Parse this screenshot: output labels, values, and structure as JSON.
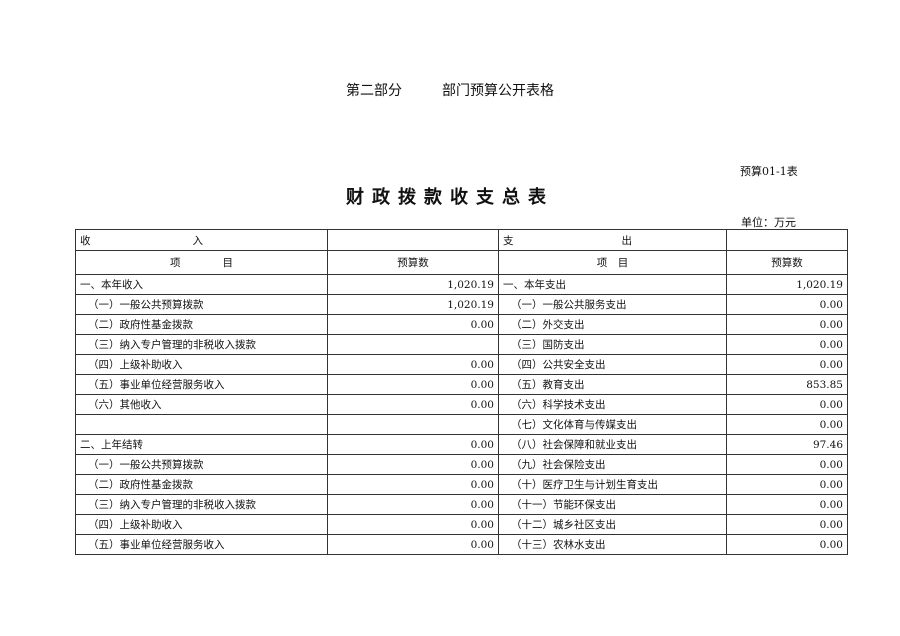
{
  "header": {
    "part": "第二部分",
    "part_title": "部门预算公开表格",
    "form_no": "预算01-1表",
    "title": "财政拨款收支总表",
    "unit": "单位：万元"
  },
  "table": {
    "income_header": [
      "收",
      "入"
    ],
    "expense_header": [
      "支",
      "出"
    ],
    "item_header": "项　　　　目",
    "item_header_right": "项　目",
    "amount_header": "预算数",
    "rows": [
      {
        "in_label": "一、本年收入",
        "in_indent": false,
        "in_value": "1,020.19",
        "out_label": "一、本年支出",
        "out_indent": false,
        "out_value": "1,020.19"
      },
      {
        "in_label": "（一）一般公共预算拨款",
        "in_indent": true,
        "in_value": "1,020.19",
        "out_label": "（一）一般公共服务支出",
        "out_indent": true,
        "out_value": "0.00"
      },
      {
        "in_label": "（二）政府性基金拨款",
        "in_indent": true,
        "in_value": "0.00",
        "out_label": "（二）外交支出",
        "out_indent": true,
        "out_value": "0.00"
      },
      {
        "in_label": "（三）纳入专户管理的非税收入拨款",
        "in_indent": true,
        "in_value": "",
        "out_label": "（三）国防支出",
        "out_indent": true,
        "out_value": "0.00"
      },
      {
        "in_label": "（四）上级补助收入",
        "in_indent": true,
        "in_value": "0.00",
        "out_label": "（四）公共安全支出",
        "out_indent": true,
        "out_value": "0.00"
      },
      {
        "in_label": "（五）事业单位经营服务收入",
        "in_indent": true,
        "in_value": "0.00",
        "out_label": "（五）教育支出",
        "out_indent": true,
        "out_value": "853.85"
      },
      {
        "in_label": "（六）其他收入",
        "in_indent": true,
        "in_value": "0.00",
        "out_label": "（六）科学技术支出",
        "out_indent": true,
        "out_value": "0.00"
      },
      {
        "in_label": "",
        "in_indent": false,
        "in_value": "",
        "out_label": "（七）文化体育与传媒支出",
        "out_indent": true,
        "out_value": "0.00"
      },
      {
        "in_label": "二、上年结转",
        "in_indent": false,
        "in_value": "0.00",
        "out_label": "（八）社会保障和就业支出",
        "out_indent": true,
        "out_value": "97.46"
      },
      {
        "in_label": "（一）一般公共预算拨款",
        "in_indent": true,
        "in_value": "0.00",
        "out_label": "（九）社会保险支出",
        "out_indent": true,
        "out_value": "0.00"
      },
      {
        "in_label": "（二）政府性基金拨款",
        "in_indent": true,
        "in_value": "0.00",
        "out_label": "（十）医疗卫生与计划生育支出",
        "out_indent": true,
        "out_value": "0.00"
      },
      {
        "in_label": "（三）纳入专户管理的非税收入拨款",
        "in_indent": true,
        "in_value": "0.00",
        "out_label": "（十一）节能环保支出",
        "out_indent": true,
        "out_value": "0.00"
      },
      {
        "in_label": "（四）上级补助收入",
        "in_indent": true,
        "in_value": "0.00",
        "out_label": "（十二）城乡社区支出",
        "out_indent": true,
        "out_value": "0.00"
      },
      {
        "in_label": "（五）事业单位经营服务收入",
        "in_indent": true,
        "in_value": "0.00",
        "out_label": "（十三）农林水支出",
        "out_indent": true,
        "out_value": "0.00"
      }
    ]
  }
}
